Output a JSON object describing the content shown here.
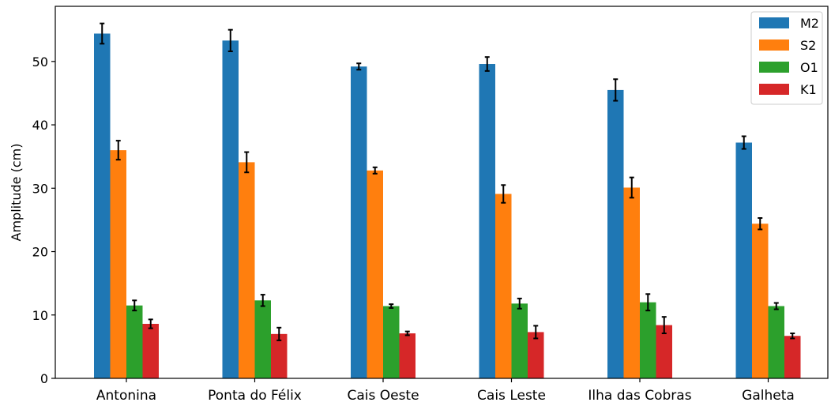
{
  "chart_data": {
    "type": "bar",
    "title": "",
    "xlabel": "",
    "ylabel": "Amplitude (cm)",
    "ylim": [
      0,
      58.7
    ],
    "yticks": [
      0,
      10,
      20,
      30,
      40,
      50
    ],
    "grid": false,
    "legend_position": "top-right",
    "categories": [
      "Antonina",
      "Ponta do Félix",
      "Cais Oeste",
      "Cais Leste",
      "Ilha das Cobras",
      "Galheta"
    ],
    "series": [
      {
        "name": "M2",
        "color": "#1f77b4",
        "values": [
          54.4,
          53.3,
          49.2,
          49.6,
          45.5,
          37.2
        ],
        "errors": [
          1.6,
          1.7,
          0.5,
          1.1,
          1.7,
          1.0
        ]
      },
      {
        "name": "S2",
        "color": "#ff7f0e",
        "values": [
          36.0,
          34.1,
          32.8,
          29.1,
          30.1,
          24.4
        ],
        "errors": [
          1.5,
          1.6,
          0.5,
          1.4,
          1.6,
          0.9
        ]
      },
      {
        "name": "O1",
        "color": "#2ca02c",
        "values": [
          11.5,
          12.3,
          11.4,
          11.8,
          12.0,
          11.4
        ],
        "errors": [
          0.8,
          0.9,
          0.3,
          0.8,
          1.3,
          0.5
        ]
      },
      {
        "name": "K1",
        "color": "#d62728",
        "values": [
          8.6,
          7.0,
          7.1,
          7.3,
          8.4,
          6.7
        ],
        "errors": [
          0.7,
          1.0,
          0.3,
          1.0,
          1.3,
          0.4
        ]
      }
    ]
  }
}
